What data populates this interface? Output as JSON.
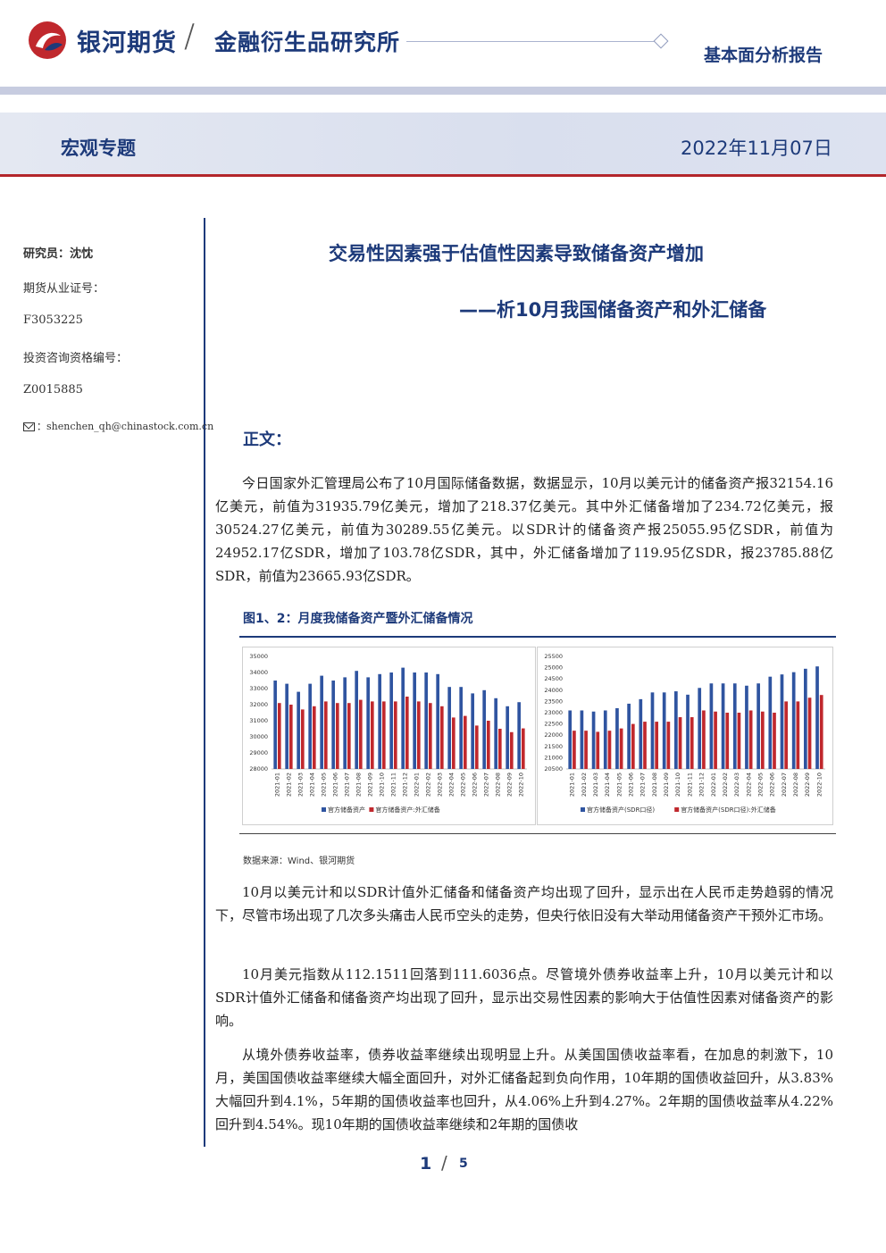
{
  "header": {
    "company": "银河期货",
    "slash": "/",
    "institute": "金融衍生品研究所",
    "report_type": "基本面分析报告",
    "section": "宏观专题",
    "date": "2022年11月07日"
  },
  "sidebar": {
    "researcher": "研究员：沈忱",
    "license_label": "期货从业证号：",
    "license": "F3053225",
    "investment_label": "投资咨询资格编号：",
    "investment": "Z0015885",
    "email": "shenchen_qh@chinastock.com.cn"
  },
  "title": {
    "main": "交易性因素强于估值性因素导致储备资产增加",
    "sub": "——析10月我国储备资产和外汇储备"
  },
  "body_label": "正文：",
  "paragraphs": {
    "p1": "今日国家外汇管理局公布了10月国际储备数据，数据显示，10月以美元计的储备资产报32154.16亿美元，前值为31935.79亿美元，增加了218.37亿美元。其中外汇储备增加了234.72亿美元，报30524.27亿美元，前值为30289.55亿美元。以SDR计的储备资产报25055.95亿SDR，前值为24952.17亿SDR，增加了103.78亿SDR，其中，外汇储备增加了119.95亿SDR，报23785.88亿SDR，前值为23665.93亿SDR。",
    "p2": "10月以美元计和以SDR计值外汇储备和储备资产均出现了回升，显示出在人民币走势趋弱的情况下，尽管市场出现了几次多头痛击人民币空头的走势，但央行依旧没有大举动用储备资产干预外汇市场。",
    "p3": "10月美元指数从112.1511回落到111.6036点。尽管境外债券收益率上升，10月以美元计和以SDR计值外汇储备和储备资产均出现了回升，显示出交易性因素的影响大于估值性因素对储备资产的影响。",
    "p4": "从境外债券收益率，债券收益率继续出现明显上升。从美国国债收益率看，在加息的刺激下，10月，美国国债收益率继续大幅全面回升，对外汇储备起到负向作用，10年期的国债收益回升，从3.83%大幅回升到4.1%，5年期的国债收益率也回升，从4.06%上升到4.27%。2年期的国债收益率从4.22%回升到4.54%。现10年期的国债收益率继续和2年期的国债收"
  },
  "figure": {
    "caption": "图1、2：月度我储备资产暨外汇储备情况",
    "source": "数据来源：Wind、银河期货"
  },
  "chart_data": [
    {
      "type": "bar",
      "categories": [
        "2021-01",
        "2021-02",
        "2021-03",
        "2021-04",
        "2021-05",
        "2021-06",
        "2021-07",
        "2021-08",
        "2021-09",
        "2021-10",
        "2021-11",
        "2021-12",
        "2022-01",
        "2022-02",
        "2022-03",
        "2022-04",
        "2022-05",
        "2022-06",
        "2022-07",
        "2022-08",
        "2022-09",
        "2022-10"
      ],
      "ylim": [
        28000,
        35000
      ],
      "yticks": [
        28000,
        29000,
        30000,
        31000,
        32000,
        33000,
        34000,
        35000
      ],
      "series": [
        {
          "name": "官方储备资产",
          "color": "#2f54a0",
          "values": [
            33500,
            33300,
            32800,
            33300,
            33800,
            33500,
            33700,
            34100,
            33700,
            33900,
            34000,
            34300,
            34000,
            34000,
            33900,
            33100,
            33100,
            32700,
            32900,
            32400,
            31900,
            32154
          ]
        },
        {
          "name": "官方储备资产:外汇储备",
          "color": "#c0282d",
          "values": [
            32100,
            32000,
            31700,
            31900,
            32200,
            32100,
            32100,
            32300,
            32200,
            32200,
            32200,
            32500,
            32200,
            32100,
            31900,
            31200,
            31300,
            30700,
            31000,
            30500,
            30290,
            30524
          ]
        }
      ]
    },
    {
      "type": "bar",
      "categories": [
        "2021-01",
        "2021-02",
        "2021-03",
        "2021-04",
        "2021-05",
        "2021-06",
        "2021-07",
        "2021-08",
        "2021-09",
        "2021-10",
        "2021-11",
        "2021-12",
        "2022-01",
        "2022-02",
        "2022-03",
        "2022-04",
        "2022-05",
        "2022-06",
        "2022-07",
        "2022-08",
        "2022-09",
        "2022-10"
      ],
      "ylim": [
        20500,
        25500
      ],
      "yticks": [
        20500,
        21000,
        21500,
        22000,
        22500,
        23000,
        23500,
        24000,
        24500,
        25000,
        25500
      ],
      "series": [
        {
          "name": "官方储备资产(SDR口径)",
          "color": "#2f54a0",
          "values": [
            23100,
            23100,
            23050,
            23100,
            23200,
            23400,
            23600,
            23900,
            23900,
            23950,
            23800,
            24100,
            24300,
            24300,
            24300,
            24200,
            24300,
            24600,
            24700,
            24800,
            24952,
            25056
          ]
        },
        {
          "name": "官方储备资产(SDR口径):外汇储备",
          "color": "#c0282d",
          "values": [
            22200,
            22200,
            22150,
            22200,
            22300,
            22500,
            22600,
            22600,
            22600,
            22800,
            22800,
            23100,
            23050,
            23000,
            23000,
            23100,
            23050,
            23000,
            23500,
            23500,
            23666,
            23786
          ]
        }
      ]
    }
  ],
  "page": {
    "current": "1",
    "separator": "/",
    "total": "5"
  }
}
